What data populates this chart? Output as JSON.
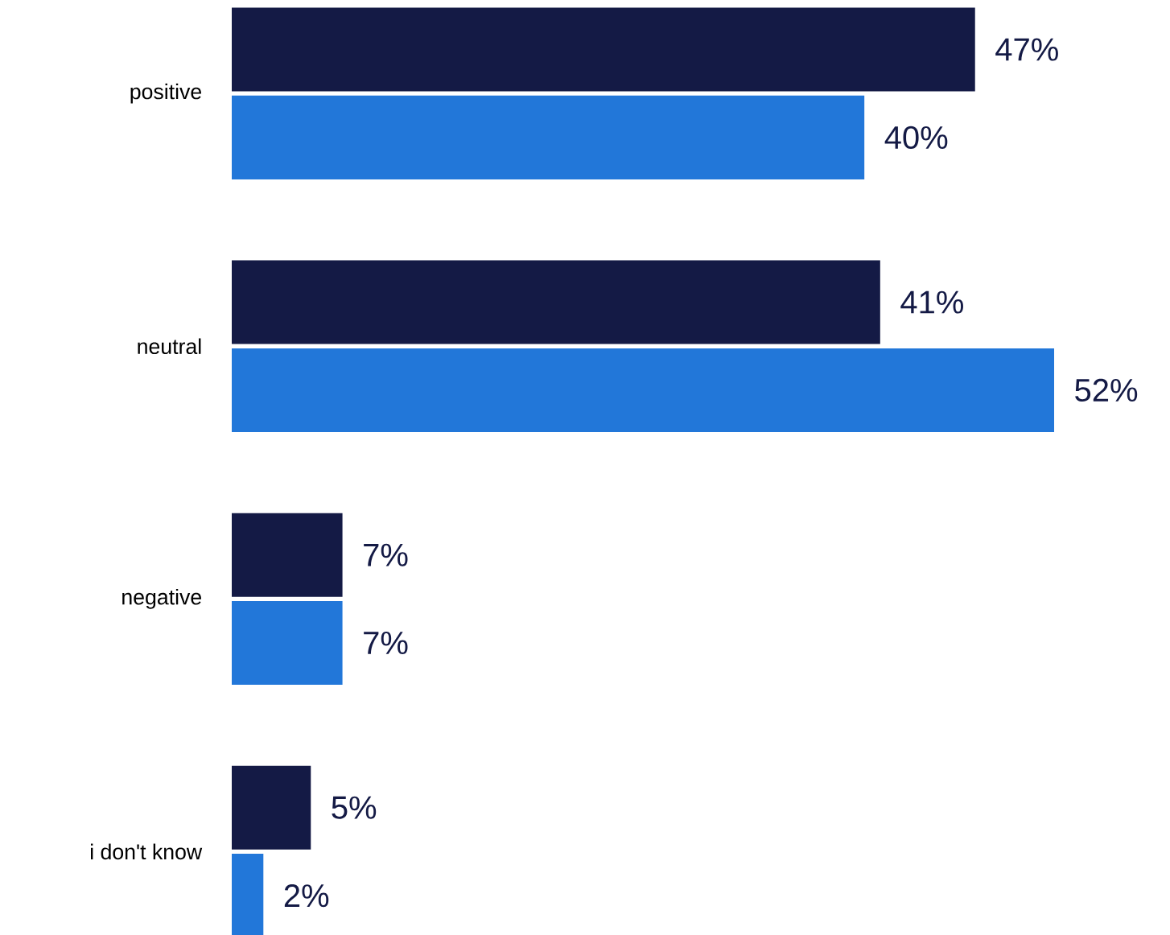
{
  "chart_data": {
    "type": "bar",
    "orientation": "horizontal",
    "categories": [
      "positive",
      "neutral",
      "negative",
      "i don't know"
    ],
    "series": [
      {
        "color": "#141a45",
        "values": [
          47,
          41,
          7,
          5
        ],
        "value_labels": [
          "47%",
          "41%",
          "7%",
          "5%"
        ]
      },
      {
        "color": "#2277d9",
        "values": [
          40,
          52,
          7,
          2
        ],
        "value_labels": [
          "40%",
          "52%",
          "7%",
          "2%"
        ]
      }
    ]
  }
}
